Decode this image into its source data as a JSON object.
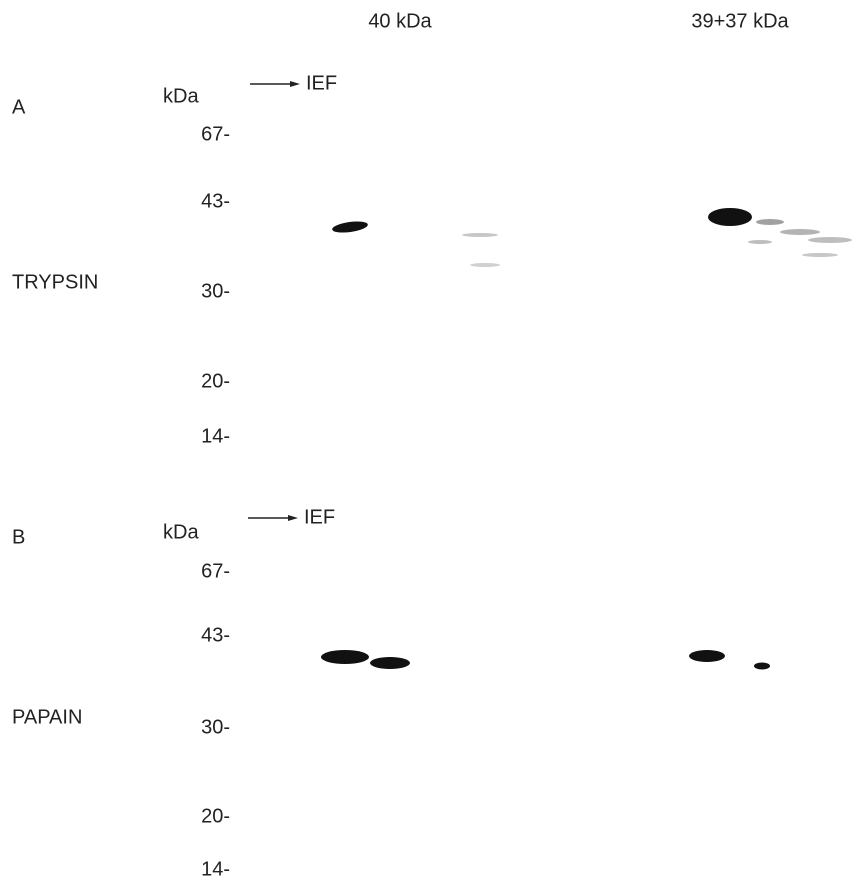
{
  "columns": [
    "40 kDa",
    "39+37 kDa"
  ],
  "panels": [
    {
      "letter": "A",
      "enzyme": "TRYPSIN",
      "unit": "kDa",
      "direction": "IEF",
      "markers": [
        "67-",
        "43-",
        "30-",
        "20-",
        "14-"
      ]
    },
    {
      "letter": "B",
      "enzyme": "PAPAIN",
      "unit": "kDa",
      "direction": "IEF",
      "markers": [
        "67-",
        "43-",
        "30-",
        "20-",
        "14-"
      ]
    }
  ]
}
